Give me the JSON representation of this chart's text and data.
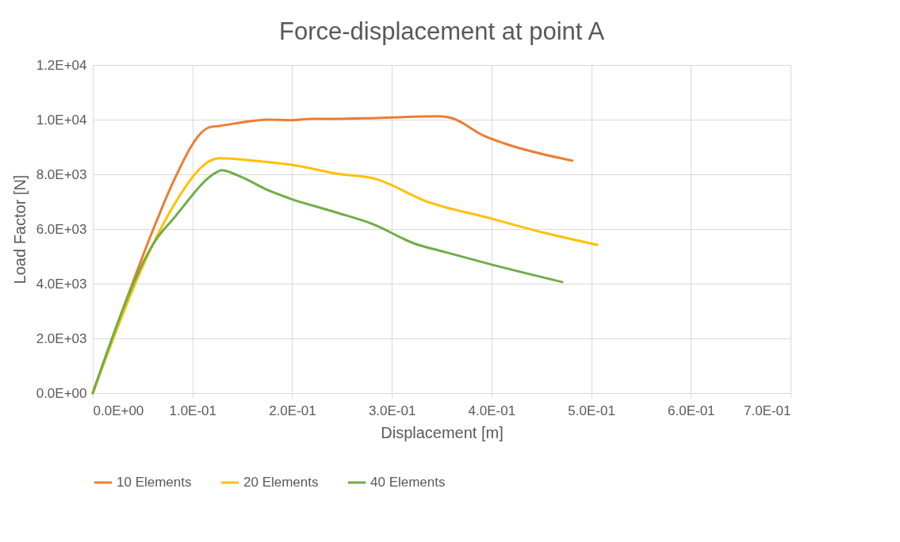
{
  "chart_data": {
    "type": "line",
    "title": "Force-displacement at point A",
    "xlabel": "Displacement [m]",
    "ylabel": "Load Factor [N]",
    "xlim": [
      0,
      0.7
    ],
    "ylim": [
      0,
      12000
    ],
    "xticks": [
      {
        "value": 0,
        "label": "0.0E+00"
      },
      {
        "value": 0.1,
        "label": "1.0E-01"
      },
      {
        "value": 0.2,
        "label": "2.0E-01"
      },
      {
        "value": 0.3,
        "label": "3.0E-01"
      },
      {
        "value": 0.4,
        "label": "4.0E-01"
      },
      {
        "value": 0.5,
        "label": "5.0E-01"
      },
      {
        "value": 0.6,
        "label": "6.0E-01"
      },
      {
        "value": 0.7,
        "label": "7.0E-01"
      }
    ],
    "yticks": [
      {
        "value": 0,
        "label": "0.0E+00"
      },
      {
        "value": 2000,
        "label": "2.0E+03"
      },
      {
        "value": 4000,
        "label": "4.0E+03"
      },
      {
        "value": 6000,
        "label": "6.0E+03"
      },
      {
        "value": 8000,
        "label": "8.0E+03"
      },
      {
        "value": 10000,
        "label": "1.0E+04"
      },
      {
        "value": 12000,
        "label": "1.2E+04"
      }
    ],
    "grid": true,
    "legend": "bottom",
    "marker": "none",
    "line_style": "solid",
    "series": [
      {
        "name": "10 Elements",
        "color": "#ed7d31",
        "x": [
          0,
          0.064,
          0.0795,
          0.117,
          0.127,
          0.177,
          0.199,
          0.22,
          0.241,
          0.284,
          0.347,
          0.36,
          0.392,
          0.413,
          0.481
        ],
        "values": [
          0,
          6290,
          7630,
          9720,
          9770,
          10000,
          9980,
          10030,
          10030,
          10060,
          10120,
          10060,
          9420,
          9130,
          8500
        ]
      },
      {
        "name": "20 Elements",
        "color": "#ffc000",
        "x": [
          0,
          0.064,
          0.0795,
          0.122,
          0.127,
          0.177,
          0.204,
          0.244,
          0.284,
          0.334,
          0.4,
          0.453,
          0.506
        ],
        "values": [
          0,
          5710,
          6760,
          8560,
          8590,
          8440,
          8320,
          8030,
          7830,
          7020,
          6380,
          5860,
          5420
        ]
      },
      {
        "name": "40 Elements",
        "color": "#70ad47",
        "x": [
          0,
          0.066,
          0.0795,
          0.125,
          0.129,
          0.145,
          0.177,
          0.199,
          0.244,
          0.281,
          0.324,
          0.35,
          0.4,
          0.471
        ],
        "values": [
          0,
          5740,
          6320,
          8090,
          8150,
          7970,
          7400,
          7100,
          6610,
          6180,
          5450,
          5190,
          4700,
          4060
        ]
      }
    ]
  }
}
